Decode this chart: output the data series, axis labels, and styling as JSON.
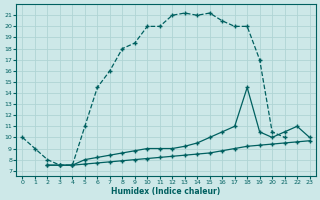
{
  "xlabel": "Humidex (Indice chaleur)",
  "xlim": [
    -0.5,
    23.5
  ],
  "ylim": [
    6.5,
    22
  ],
  "yticks": [
    7,
    8,
    9,
    10,
    11,
    12,
    13,
    14,
    15,
    16,
    17,
    18,
    19,
    20,
    21
  ],
  "xticks": [
    0,
    1,
    2,
    3,
    4,
    5,
    6,
    7,
    8,
    9,
    10,
    11,
    12,
    13,
    14,
    15,
    16,
    17,
    18,
    19,
    20,
    21,
    22,
    23
  ],
  "background_color": "#cde8e8",
  "grid_color": "#b0d4d4",
  "line_color": "#006060",
  "curve1_x": [
    0,
    1,
    2,
    3,
    4,
    5,
    6,
    7,
    8,
    9,
    10,
    11,
    12,
    13,
    14,
    15,
    16,
    17,
    18,
    19,
    20,
    21
  ],
  "curve1_y": [
    10,
    9,
    8,
    7.5,
    7.5,
    11,
    14.5,
    16,
    18,
    18.5,
    20,
    20,
    21,
    21.2,
    21,
    21.2,
    20.5,
    20,
    20,
    17,
    10.5,
    10
  ],
  "curve2_x": [
    2,
    3,
    4,
    5,
    6,
    7,
    8,
    9,
    10,
    11,
    12,
    13,
    14,
    15,
    16,
    17,
    18,
    19,
    20,
    21,
    22,
    23
  ],
  "curve2_y": [
    7.5,
    7.5,
    7.5,
    8,
    8.2,
    8.4,
    8.6,
    8.8,
    9,
    9,
    9,
    9.2,
    9.5,
    10,
    10.5,
    11,
    14.5,
    10.5,
    10,
    10.5,
    11,
    10
  ],
  "curve3_x": [
    2,
    3,
    4,
    5,
    6,
    7,
    8,
    9,
    10,
    11,
    12,
    13,
    14,
    15,
    16,
    17,
    18,
    19,
    20,
    21,
    22,
    23
  ],
  "curve3_y": [
    7.5,
    7.5,
    7.5,
    7.6,
    7.7,
    7.8,
    7.9,
    8.0,
    8.1,
    8.2,
    8.3,
    8.4,
    8.5,
    8.6,
    8.8,
    9.0,
    9.2,
    9.3,
    9.4,
    9.5,
    9.6,
    9.7
  ]
}
